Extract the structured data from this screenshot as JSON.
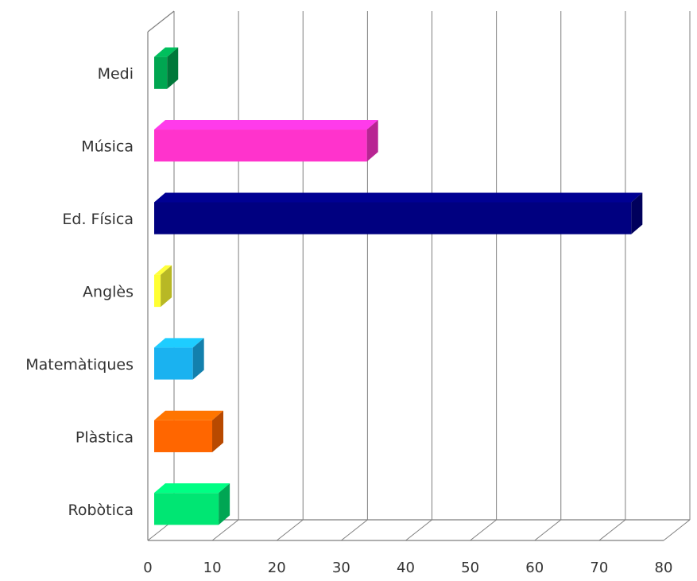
{
  "chart_data": {
    "type": "bar",
    "orientation": "horizontal",
    "three_d": true,
    "categories": [
      "Medi",
      "Música",
      "Ed. Física",
      "Anglès",
      "Matemàtiques",
      "Plàstica",
      "Robòtica"
    ],
    "values": [
      2,
      33,
      74,
      1,
      6,
      9,
      10
    ],
    "colors": [
      "#00a651",
      "#ff33cc",
      "#000080",
      "#ffff33",
      "#1ab2f0",
      "#ff6600",
      "#00e673"
    ],
    "xlim": [
      0,
      80
    ],
    "xticks": [
      "0",
      "10",
      "20",
      "30",
      "40",
      "50",
      "60",
      "70",
      "80"
    ],
    "title": "",
    "xlabel": "",
    "ylabel": "",
    "grid": true,
    "legend": "none"
  }
}
